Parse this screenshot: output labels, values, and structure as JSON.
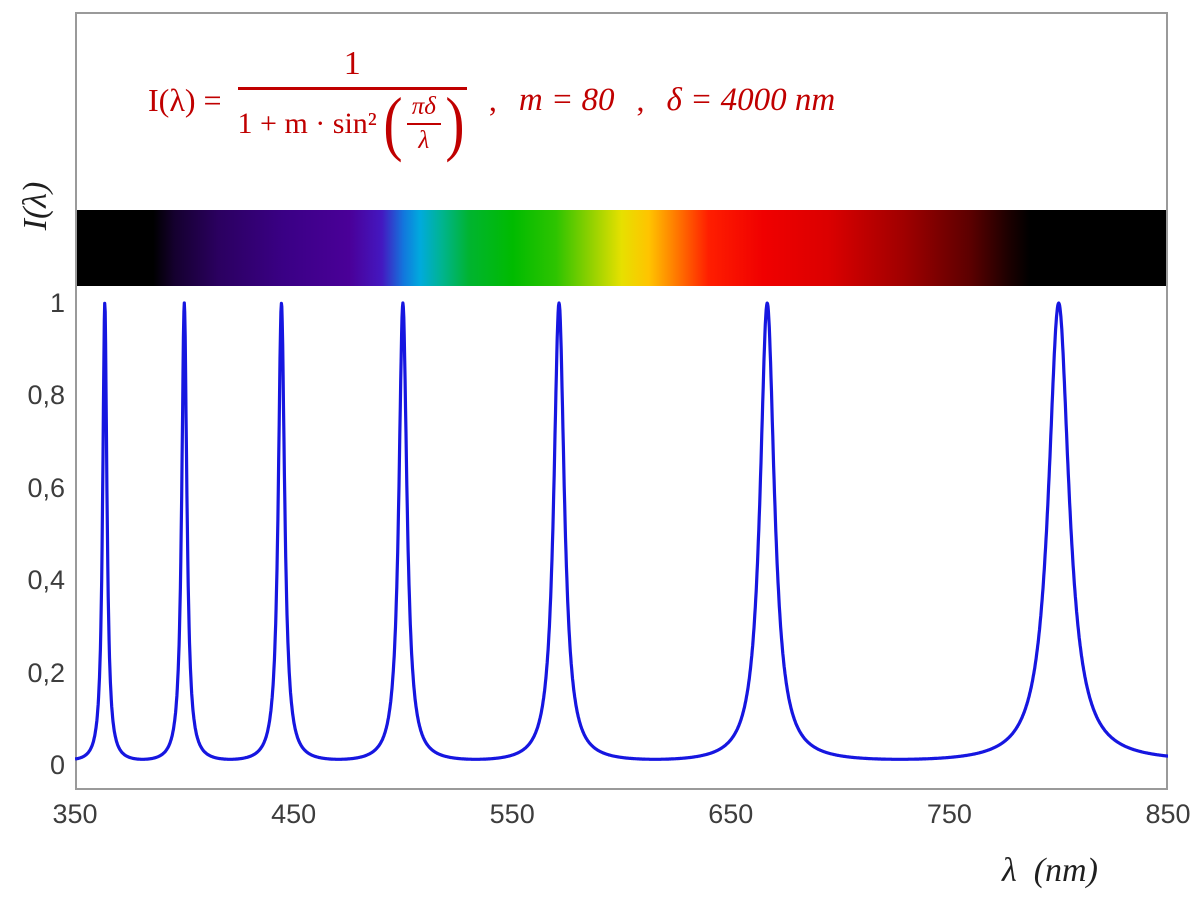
{
  "colors": {
    "formula": "#c00000",
    "curve": "#1616e0",
    "frame": "#9a9a9a",
    "tick_text": "#3d3d3d",
    "axis_label": "#1f1f1f"
  },
  "formula": {
    "lhs": "I(λ) =",
    "numerator": "1",
    "denominator_prefix": "1 + m · sin²",
    "paren_open": "(",
    "paren_close": ")",
    "inner_numerator": "πδ",
    "inner_denominator": "λ",
    "comma": ",",
    "m_text": "m = 80",
    "delta_text": "δ = 4000 nm"
  },
  "axes": {
    "y_label": "I(λ)",
    "x_label": "λ  (nm)",
    "x_tick_labels": [
      "350",
      "450",
      "550",
      "650",
      "750",
      "850"
    ],
    "y_tick_labels": [
      "0",
      "0,2",
      "0,4",
      "0,6",
      "0,8",
      "1"
    ]
  },
  "chart_data": {
    "type": "line",
    "title": "I(λ) = 1 / (1 + m·sin²(πδ/λ)) ,  m = 80 ,  δ = 4000 nm",
    "xlabel": "λ (nm)",
    "ylabel": "I(λ)",
    "xlim": [
      350,
      850
    ],
    "ylim": [
      0,
      1
    ],
    "x_ticks": [
      350,
      450,
      550,
      650,
      750,
      850
    ],
    "y_ticks": [
      0,
      0.2,
      0.4,
      0.6,
      0.8,
      1
    ],
    "grid": false,
    "legend": "none",
    "curve_color": "#1616e0",
    "function": {
      "form": "I(lambda) = 1 / (1 + m * sin(pi*delta/lambda)^2)",
      "m": 80,
      "delta_nm": 4000,
      "sample_step_nm": 0.2
    },
    "peaks_nm": [
      363.6,
      400,
      444.4,
      500,
      571.4,
      666.7,
      800
    ],
    "peak_value": 1,
    "baseline_value": 0.0123,
    "spectrum_bar": {
      "visible_range_nm": [
        380,
        780
      ],
      "gradient_stops": [
        {
          "pos": 0,
          "color": "#000000"
        },
        {
          "pos": 7,
          "color": "#000000"
        },
        {
          "pos": 9,
          "color": "#15002f"
        },
        {
          "pos": 13,
          "color": "#2b0060"
        },
        {
          "pos": 19,
          "color": "#3a0085"
        },
        {
          "pos": 25,
          "color": "#4a0098"
        },
        {
          "pos": 28,
          "color": "#4418c0"
        },
        {
          "pos": 30,
          "color": "#1277dd"
        },
        {
          "pos": 31.5,
          "color": "#00aadd"
        },
        {
          "pos": 33.5,
          "color": "#00b490"
        },
        {
          "pos": 36,
          "color": "#00b430"
        },
        {
          "pos": 40,
          "color": "#00bb00"
        },
        {
          "pos": 44,
          "color": "#2ec400"
        },
        {
          "pos": 47,
          "color": "#8bd000"
        },
        {
          "pos": 50,
          "color": "#e6e000"
        },
        {
          "pos": 52.5,
          "color": "#ffc400"
        },
        {
          "pos": 55,
          "color": "#ff7a00"
        },
        {
          "pos": 58,
          "color": "#ff1e00"
        },
        {
          "pos": 63,
          "color": "#f00000"
        },
        {
          "pos": 69,
          "color": "#db0000"
        },
        {
          "pos": 76,
          "color": "#9f0000"
        },
        {
          "pos": 82,
          "color": "#5c0000"
        },
        {
          "pos": 85.5,
          "color": "#1d0000"
        },
        {
          "pos": 87.5,
          "color": "#000000"
        },
        {
          "pos": 100,
          "color": "#000000"
        }
      ]
    }
  }
}
